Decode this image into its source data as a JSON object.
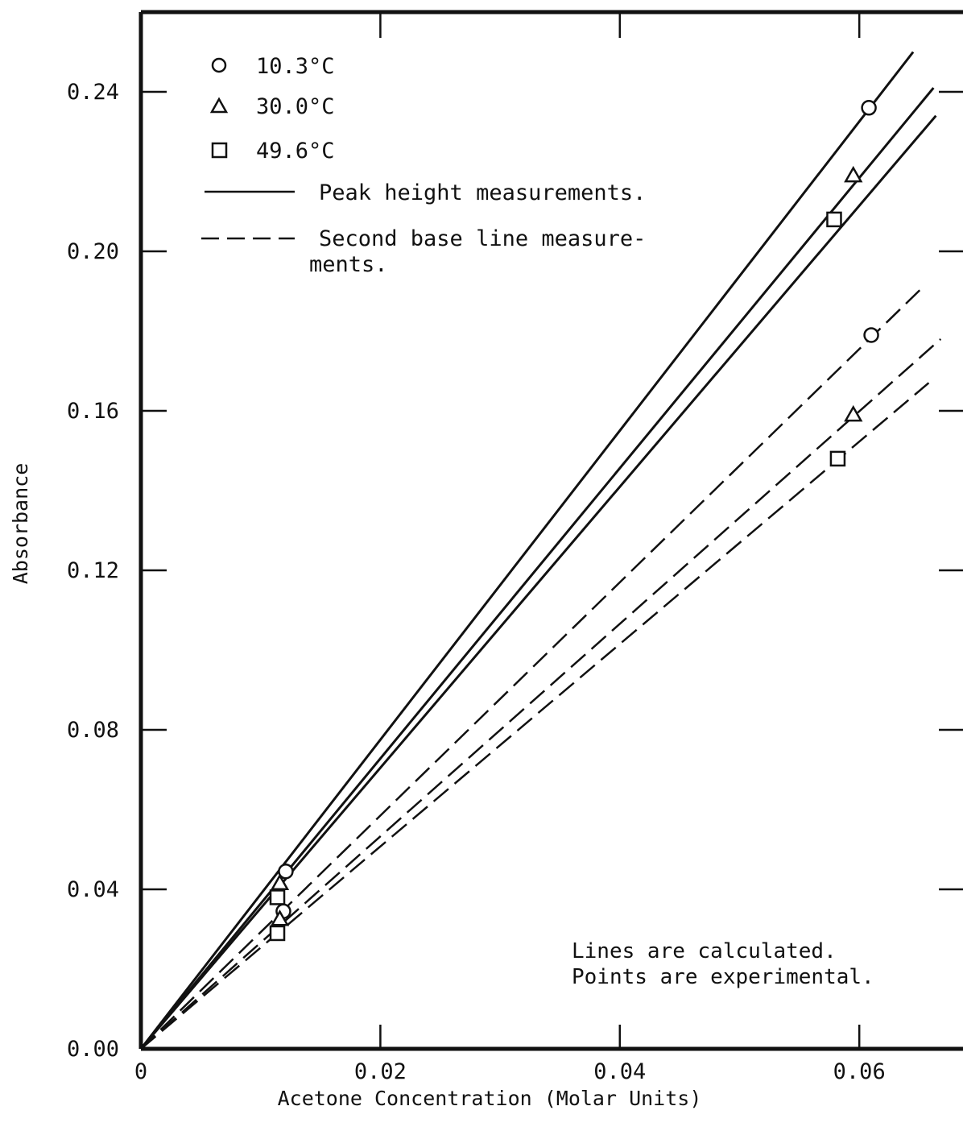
{
  "chart_data": {
    "type": "line",
    "xlabel": "Acetone Concentration (Molar Units)",
    "ylabel": "Absorbance",
    "xlim": [
      0,
      0.069
    ],
    "ylim": [
      0,
      0.26
    ],
    "x_ticks": [
      {
        "value": 0,
        "label": "0"
      },
      {
        "value": 0.02,
        "label": "0.02"
      },
      {
        "value": 0.04,
        "label": "0.04"
      },
      {
        "value": 0.06,
        "label": "0.06"
      }
    ],
    "y_ticks": [
      {
        "value": 0,
        "label": "0.00"
      },
      {
        "value": 0.04,
        "label": "0.04"
      },
      {
        "value": 0.08,
        "label": "0.08"
      },
      {
        "value": 0.12,
        "label": "0.12"
      },
      {
        "value": 0.16,
        "label": "0.16"
      },
      {
        "value": 0.2,
        "label": "0.20"
      },
      {
        "value": 0.24,
        "label": "0.24"
      }
    ],
    "grid": false,
    "legend_position": "top-left",
    "legend": {
      "markers": [
        {
          "symbol": "circle",
          "label": "10.3°C"
        },
        {
          "symbol": "triangle",
          "label": "30.0°C"
        },
        {
          "symbol": "square",
          "label": "49.6°C"
        }
      ],
      "line_styles": [
        {
          "style": "solid",
          "lines": [
            "Peak height measurements."
          ]
        },
        {
          "style": "dashed",
          "lines": [
            "Second base line measure-",
            "ments."
          ]
        }
      ]
    },
    "annotation": [
      "Lines are calculated.",
      "Points are experimental."
    ],
    "series": [
      {
        "temperature": "10.3°C",
        "style": "solid",
        "marker": "circle",
        "line_x": [
          0,
          0.0645
        ],
        "line_y": [
          0,
          0.25
        ],
        "points": [
          {
            "x": 0.0121,
            "y": 0.0445
          },
          {
            "x": 0.0608,
            "y": 0.236
          }
        ]
      },
      {
        "temperature": "30.0°C",
        "style": "solid",
        "marker": "triangle",
        "line_x": [
          0,
          0.0662
        ],
        "line_y": [
          0,
          0.241
        ],
        "points": [
          {
            "x": 0.0116,
            "y": 0.0415
          },
          {
            "x": 0.0595,
            "y": 0.219
          }
        ]
      },
      {
        "temperature": "49.6°C",
        "style": "solid",
        "marker": "square",
        "line_x": [
          0,
          0.0664
        ],
        "line_y": [
          0,
          0.234
        ],
        "points": [
          {
            "x": 0.0114,
            "y": 0.038
          },
          {
            "x": 0.0579,
            "y": 0.208
          }
        ]
      },
      {
        "temperature": "10.3°C",
        "style": "dashed",
        "marker": "circle",
        "line_x": [
          0,
          0.0653
        ],
        "line_y": [
          0,
          0.191
        ],
        "points": [
          {
            "x": 0.0119,
            "y": 0.0345
          },
          {
            "x": 0.061,
            "y": 0.179
          }
        ]
      },
      {
        "temperature": "30.0°C",
        "style": "dashed",
        "marker": "triangle",
        "line_x": [
          0,
          0.0668
        ],
        "line_y": [
          0,
          0.178
        ],
        "points": [
          {
            "x": 0.0116,
            "y": 0.0325
          },
          {
            "x": 0.0595,
            "y": 0.159
          }
        ]
      },
      {
        "temperature": "49.6°C",
        "style": "dashed",
        "marker": "square",
        "line_x": [
          0,
          0.0658
        ],
        "line_y": [
          0,
          0.167
        ],
        "points": [
          {
            "x": 0.0114,
            "y": 0.029
          },
          {
            "x": 0.0582,
            "y": 0.148
          }
        ]
      }
    ]
  }
}
